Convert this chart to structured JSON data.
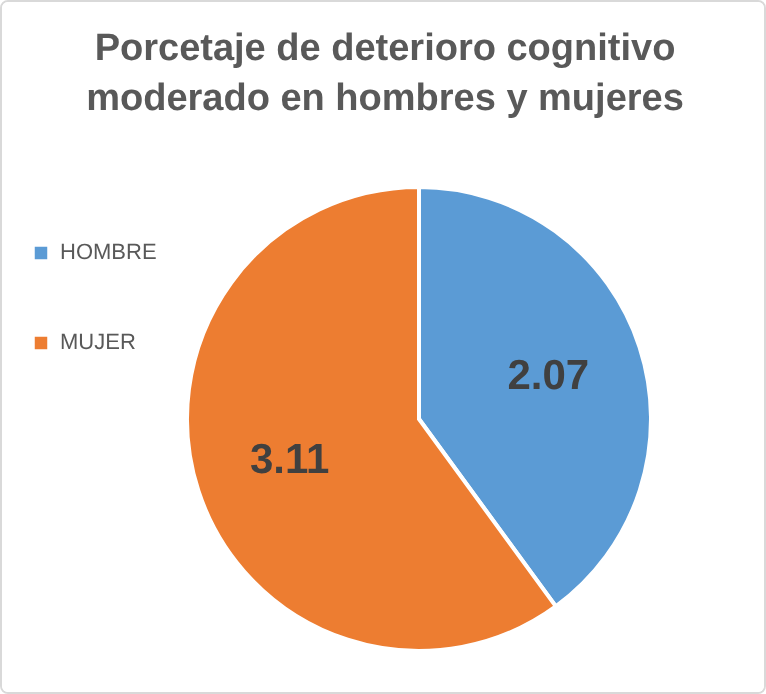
{
  "chart_data": {
    "type": "pie",
    "title": "Porcetaje de deterioro cognitivo moderado  en hombres y mujeres",
    "categories": [
      "HOMBRE",
      "MUJER"
    ],
    "values": [
      2.07,
      3.11
    ],
    "colors": [
      "#5b9bd5",
      "#ed7d31"
    ],
    "data_labels": true,
    "legend": "left"
  }
}
